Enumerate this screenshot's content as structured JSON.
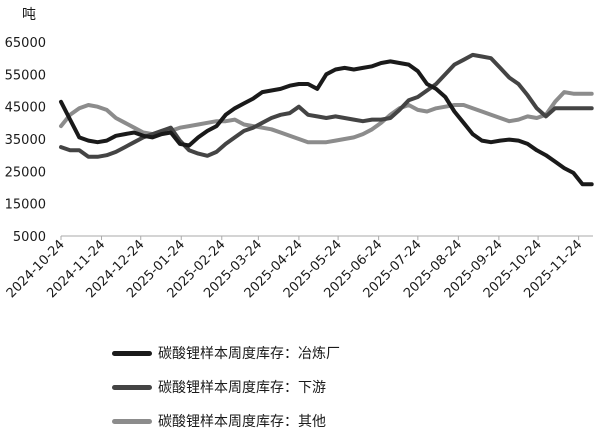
{
  "chart_data": {
    "type": "line",
    "title": "",
    "ylabel": "吨",
    "ylim": [
      5000,
      65000
    ],
    "yticks": [
      5000,
      15000,
      25000,
      35000,
      45000,
      55000,
      65000
    ],
    "xlim": [
      "2024-10-24",
      "2025-12-05"
    ],
    "xticks": [
      "2024-10-24",
      "2024-11-24",
      "2024-12-24",
      "2025-01-24",
      "2025-02-24",
      "2025-03-24",
      "2025-04-24",
      "2025-05-24",
      "2025-06-24",
      "2025-07-24",
      "2025-08-24",
      "2025-09-24",
      "2025-10-24",
      "2025-11-24"
    ],
    "grid": false,
    "legend_position": "bottom",
    "x": [
      "2024-10-24",
      "2024-10-31",
      "2024-11-07",
      "2024-11-14",
      "2024-11-21",
      "2024-11-28",
      "2024-12-05",
      "2024-12-12",
      "2024-12-19",
      "2024-12-26",
      "2025-01-02",
      "2025-01-09",
      "2025-01-16",
      "2025-01-23",
      "2025-01-30",
      "2025-02-06",
      "2025-02-13",
      "2025-02-20",
      "2025-02-27",
      "2025-03-06",
      "2025-03-13",
      "2025-03-20",
      "2025-03-27",
      "2025-04-03",
      "2025-04-10",
      "2025-04-17",
      "2025-04-24",
      "2025-05-01",
      "2025-05-08",
      "2025-05-15",
      "2025-05-22",
      "2025-05-29",
      "2025-06-05",
      "2025-06-12",
      "2025-06-19",
      "2025-06-26",
      "2025-07-03",
      "2025-07-10",
      "2025-07-17",
      "2025-07-24",
      "2025-07-31",
      "2025-08-07",
      "2025-08-14",
      "2025-08-21",
      "2025-08-28",
      "2025-09-04",
      "2025-09-11",
      "2025-09-18",
      "2025-09-25",
      "2025-10-02",
      "2025-10-09",
      "2025-10-16",
      "2025-10-23",
      "2025-10-30",
      "2025-11-06",
      "2025-11-13",
      "2025-11-20",
      "2025-11-27",
      "2025-12-04"
    ],
    "series": [
      {
        "name": "碳酸锂样本周度库存：冶炼厂",
        "color": "#1a1a1a",
        "values": [
          46500,
          41000,
          35500,
          34500,
          34000,
          34500,
          36000,
          36500,
          37000,
          36000,
          35500,
          36500,
          37000,
          33500,
          33000,
          35500,
          37500,
          39000,
          42500,
          44500,
          46000,
          47500,
          49500,
          50000,
          50500,
          51500,
          52000,
          52000,
          50500,
          55000,
          56500,
          57000,
          56500,
          57000,
          57500,
          58500,
          59000,
          58500,
          58000,
          56000,
          52000,
          50500,
          48000,
          43500,
          40000,
          36500,
          34500,
          34000,
          34500,
          34800,
          34500,
          33500,
          31500,
          30000,
          28000,
          26000,
          24500,
          21000,
          21000
        ]
      },
      {
        "name": "碳酸锂样本周度库存：下游",
        "color": "#444444",
        "values": [
          32500,
          31500,
          31500,
          29500,
          29500,
          30000,
          31000,
          32500,
          34000,
          35500,
          36500,
          37500,
          38500,
          34500,
          31500,
          30500,
          29800,
          31000,
          33500,
          35500,
          37500,
          38500,
          40000,
          41500,
          42500,
          43000,
          45000,
          42500,
          42000,
          41500,
          42000,
          41500,
          41000,
          40500,
          41000,
          41000,
          41500,
          44000,
          47000,
          48000,
          50000,
          52000,
          55000,
          58000,
          59500,
          61000,
          60500,
          60000,
          57000,
          54000,
          52000,
          48500,
          44500,
          42000,
          44500,
          44500,
          44500,
          44500,
          44500
        ]
      },
      {
        "name": "碳酸锂样本周度库存：其他",
        "color": "#8c8c8c",
        "values": [
          39000,
          42500,
          44500,
          45500,
          45000,
          44000,
          41500,
          40000,
          38500,
          37000,
          36500,
          37000,
          37500,
          38500,
          39000,
          39500,
          40000,
          40500,
          40500,
          41000,
          39500,
          39000,
          38500,
          38000,
          37000,
          36000,
          35000,
          34000,
          34000,
          34000,
          34500,
          35000,
          35500,
          36500,
          38000,
          40000,
          42500,
          44500,
          45500,
          44000,
          43500,
          44500,
          45000,
          45500,
          45500,
          44500,
          43500,
          42500,
          41500,
          40500,
          41000,
          42000,
          41500,
          42500,
          46500,
          49500,
          49000,
          49000,
          49000
        ]
      }
    ]
  }
}
